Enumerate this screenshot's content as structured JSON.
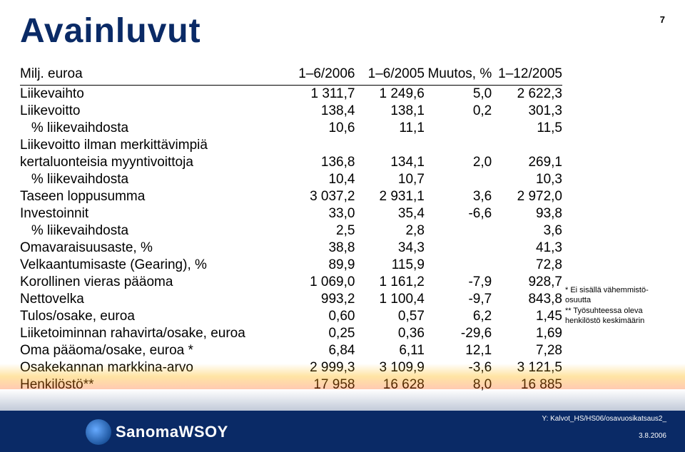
{
  "pageNumber": "7",
  "title": "Avainluvut",
  "columns": {
    "label": "Milj. euroa",
    "a": "1–6/2006",
    "b": "1–6/2005",
    "c": "Muutos, %",
    "d": "1–12/2005"
  },
  "rows": [
    {
      "label": "Liikevaihto",
      "a": "1 311,7",
      "b": "1 249,6",
      "c": "5,0",
      "d": "2 622,3"
    },
    {
      "label": "Liikevoitto",
      "a": "138,4",
      "b": "138,1",
      "c": "0,2",
      "d": "301,3"
    },
    {
      "label": "   % liikevaihdosta",
      "a": "10,6",
      "b": "11,1",
      "c": "",
      "d": "11,5"
    },
    {
      "label": "Liikevoitto ilman merkittävimpiä",
      "a": "",
      "b": "",
      "c": "",
      "d": ""
    },
    {
      "label": "kertaluonteisia myyntivoittoja",
      "a": "136,8",
      "b": "134,1",
      "c": "2,0",
      "d": "269,1"
    },
    {
      "label": "   % liikevaihdosta",
      "a": "10,4",
      "b": "10,7",
      "c": "",
      "d": "10,3"
    },
    {
      "label": "Taseen loppusumma",
      "a": "3 037,2",
      "b": "2 931,1",
      "c": "3,6",
      "d": "2 972,0"
    },
    {
      "label": "Investoinnit",
      "a": "33,0",
      "b": "35,4",
      "c": "-6,6",
      "d": "93,8"
    },
    {
      "label": "   % liikevaihdosta",
      "a": "2,5",
      "b": "2,8",
      "c": "",
      "d": "3,6"
    },
    {
      "label": "Omavaraisuusaste, %",
      "a": "38,8",
      "b": "34,3",
      "c": "",
      "d": "41,3"
    },
    {
      "label": "Velkaantumisaste (Gearing), %",
      "a": "89,9",
      "b": "115,9",
      "c": "",
      "d": "72,8"
    },
    {
      "label": "Korollinen vieras pääoma",
      "a": "1 069,0",
      "b": "1 161,2",
      "c": "-7,9",
      "d": "928,7"
    },
    {
      "label": "Nettovelka",
      "a": "993,2",
      "b": "1 100,4",
      "c": "-9,7",
      "d": "843,8"
    },
    {
      "label": "Tulos/osake, euroa",
      "a": "0,60",
      "b": "0,57",
      "c": "6,2",
      "d": "1,45"
    },
    {
      "label": "Liiketoiminnan rahavirta/osake, euroa",
      "a": "0,25",
      "b": "0,36",
      "c": "-29,6",
      "d": "1,69"
    },
    {
      "label": "Oma pääoma/osake, euroa *",
      "a": "6,84",
      "b": "6,11",
      "c": "12,1",
      "d": "7,28"
    },
    {
      "label": "Osakekannan markkina-arvo",
      "a": "2 999,3",
      "b": "3 109,9",
      "c": "-3,6",
      "d": "3 121,5"
    },
    {
      "label": "Henkilöstö**",
      "a": "17 958",
      "b": "16 628",
      "c": "8,0",
      "d": "16 885"
    }
  ],
  "footnotes": {
    "n1": "* Ei sisällä vähemmistö-osuutta",
    "n2": "** Työsuhteessa oleva henkilöstö keskimäärin"
  },
  "logoText": "SanomaWSOY",
  "meta": {
    "source": "Y: Kalvot_HS/HS06/osavuosikatsaus2_",
    "date": "3.8.2006"
  },
  "colors": {
    "titleColor": "#0a2a66",
    "barColor": "#0a2a66"
  }
}
